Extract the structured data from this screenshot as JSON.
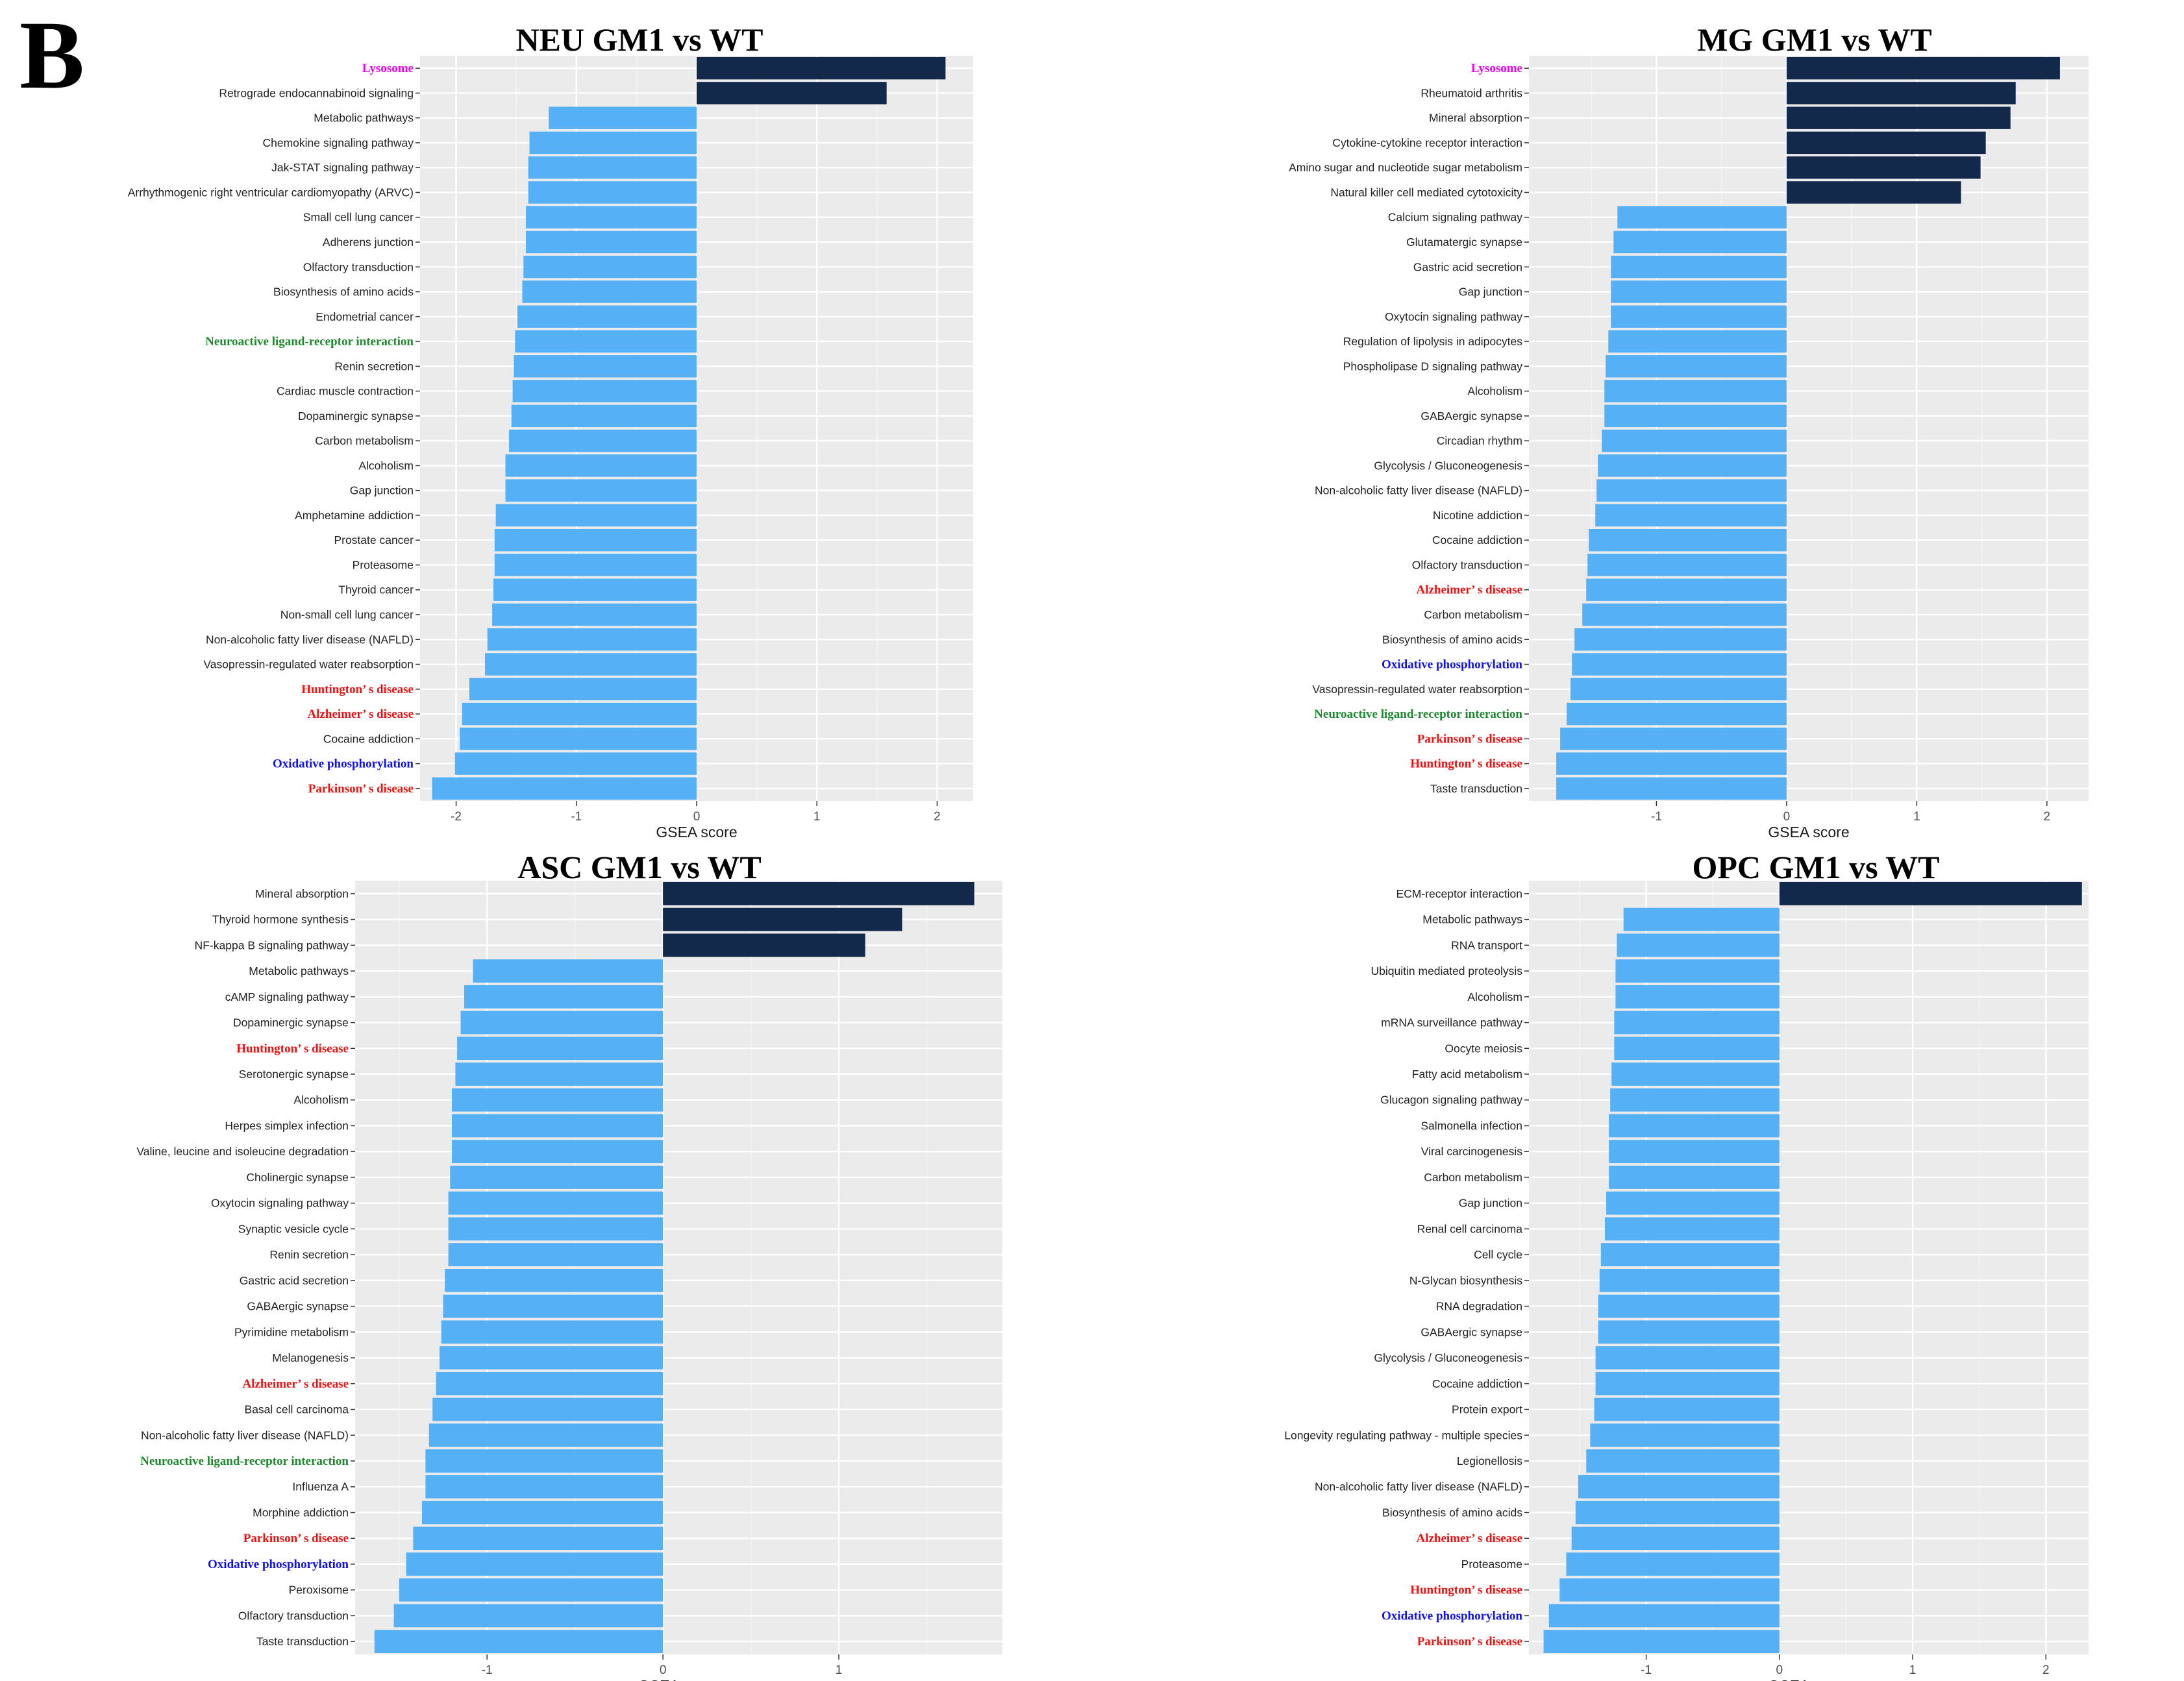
{
  "panel_label": "B",
  "colors": {
    "positive": "#13294b",
    "negative": "#56b0f5",
    "panel_bg": "#ebebeb",
    "grid": "#ffffff",
    "highlight": {
      "magenta": "#ee00ee",
      "green": "#1e8a2e",
      "red": "#ee1111",
      "blue": "#1111ee"
    }
  },
  "chart_data": [
    {
      "type": "bar",
      "orientation": "horizontal",
      "title": "NEU  GM1 vs WT",
      "xlabel": "GSEA score",
      "xlim": [
        -2.3,
        2.3
      ],
      "xticks": [
        -2,
        -1,
        0,
        1,
        2
      ],
      "categories": [
        "Lysosome",
        "Retrograde endocannabinoid signaling",
        "Metabolic pathways",
        "Chemokine signaling pathway",
        "Jak-STAT signaling pathway",
        "Arrhythmogenic right ventricular cardiomyopathy (ARVC)",
        "Small cell lung cancer",
        "Adherens junction",
        "Olfactory transduction",
        "Biosynthesis of amino acids",
        "Endometrial cancer",
        "Neuroactive ligand-receptor interaction",
        "Renin secretion",
        "Cardiac muscle contraction",
        "Dopaminergic synapse",
        "Carbon metabolism",
        "Alcoholism",
        "Gap junction",
        "Amphetamine addiction",
        "Prostate cancer",
        "Proteasome",
        "Thyroid cancer",
        "Non-small cell lung cancer",
        "Non-alcoholic fatty liver disease (NAFLD)",
        "Vasopressin-regulated water reabsorption",
        "Huntington’ s disease",
        "Alzheimer’ s disease",
        "Cocaine addiction",
        "Oxidative phosphorylation",
        "Parkinson’ s disease"
      ],
      "values": [
        2.07,
        1.58,
        -1.23,
        -1.39,
        -1.4,
        -1.4,
        -1.42,
        -1.42,
        -1.44,
        -1.45,
        -1.49,
        -1.51,
        -1.52,
        -1.53,
        -1.54,
        -1.56,
        -1.59,
        -1.59,
        -1.67,
        -1.68,
        -1.68,
        -1.69,
        -1.7,
        -1.74,
        -1.76,
        -1.89,
        -1.95,
        -1.97,
        -2.01,
        -2.2
      ],
      "highlight": {
        "Lysosome": "magenta",
        "Neuroactive ligand-receptor interaction": "green",
        "Huntington’ s disease": "red",
        "Alzheimer’ s disease": "red",
        "Oxidative phosphorylation": "blue",
        "Parkinson’ s disease": "red"
      }
    },
    {
      "type": "bar",
      "orientation": "horizontal",
      "title": "MG  GM1 vs WT",
      "xlabel": "GSEA score",
      "xlim": [
        -1.98,
        2.32
      ],
      "xticks": [
        -1,
        0,
        1,
        2
      ],
      "categories": [
        "Lysosome",
        "Rheumatoid arthritis",
        "Mineral absorption",
        "Cytokine-cytokine receptor interaction",
        "Amino sugar and nucleotide sugar metabolism",
        "Natural killer cell mediated cytotoxicity",
        "Calcium signaling pathway",
        "Glutamatergic synapse",
        "Gastric acid secretion",
        "Gap junction",
        "Oxytocin signaling pathway",
        "Regulation of lipolysis in adipocytes",
        "Phospholipase D signaling pathway",
        "Alcoholism",
        "GABAergic synapse",
        "Circadian rhythm",
        "Glycolysis / Gluconeogenesis",
        "Non-alcoholic fatty liver disease (NAFLD)",
        "Nicotine addiction",
        "Cocaine addiction",
        "Olfactory transduction",
        "Alzheimer’ s disease",
        "Carbon metabolism",
        "Biosynthesis of amino acids",
        "Oxidative phosphorylation",
        "Vasopressin-regulated water reabsorption",
        "Neuroactive ligand-receptor interaction",
        "Parkinson’ s disease",
        "Huntington’ s disease",
        "Taste transduction"
      ],
      "values": [
        2.1,
        1.76,
        1.72,
        1.53,
        1.49,
        1.34,
        -1.3,
        -1.33,
        -1.35,
        -1.35,
        -1.35,
        -1.37,
        -1.39,
        -1.4,
        -1.4,
        -1.42,
        -1.45,
        -1.46,
        -1.47,
        -1.52,
        -1.53,
        -1.54,
        -1.57,
        -1.63,
        -1.65,
        -1.66,
        -1.69,
        -1.74,
        -1.77,
        -1.77
      ],
      "highlight": {
        "Lysosome": "magenta",
        "Alzheimer’ s disease": "red",
        "Oxidative phosphorylation": "blue",
        "Neuroactive ligand-receptor interaction": "green",
        "Parkinson’ s disease": "red",
        "Huntington’ s disease": "red"
      }
    },
    {
      "type": "bar",
      "orientation": "horizontal",
      "title": "ASC  GM1 vs WT",
      "xlabel": "GSEA score",
      "xlim": [
        -1.75,
        1.93
      ],
      "xticks": [
        -1,
        0,
        1
      ],
      "categories": [
        "Mineral absorption",
        "Thyroid hormone synthesis",
        "NF-kappa B signaling pathway",
        "Metabolic pathways",
        "cAMP signaling pathway",
        "Dopaminergic synapse",
        "Huntington’ s disease",
        "Serotonergic synapse",
        "Alcoholism",
        "Herpes simplex infection",
        "Valine, leucine and isoleucine degradation",
        "Cholinergic synapse",
        "Oxytocin signaling pathway",
        "Synaptic vesicle cycle",
        "Renin secretion",
        "Gastric acid secretion",
        "GABAergic synapse",
        "Pyrimidine metabolism",
        "Melanogenesis",
        "Alzheimer’ s disease",
        "Basal cell carcinoma",
        "Non-alcoholic fatty liver disease (NAFLD)",
        "Neuroactive ligand-receptor interaction",
        "Influenza A",
        "Morphine addiction",
        "Parkinson’ s disease",
        "Oxidative phosphorylation",
        "Peroxisome",
        "Olfactory transduction",
        "Taste transduction"
      ],
      "values": [
        1.77,
        1.36,
        1.15,
        -1.08,
        -1.13,
        -1.15,
        -1.17,
        -1.18,
        -1.2,
        -1.2,
        -1.2,
        -1.21,
        -1.22,
        -1.22,
        -1.22,
        -1.24,
        -1.25,
        -1.26,
        -1.27,
        -1.29,
        -1.31,
        -1.33,
        -1.35,
        -1.35,
        -1.37,
        -1.42,
        -1.46,
        -1.5,
        -1.53,
        -1.64
      ],
      "highlight": {
        "Huntington’ s disease": "red",
        "Alzheimer’ s disease": "red",
        "Neuroactive ligand-receptor interaction": "green",
        "Parkinson’ s disease": "red",
        "Oxidative phosphorylation": "blue"
      }
    },
    {
      "type": "bar",
      "orientation": "horizontal",
      "title": "OPC GM1 vs WT",
      "xlabel": "GSEA score",
      "xlim": [
        -1.88,
        2.32
      ],
      "xticks": [
        -1,
        0,
        1,
        2
      ],
      "categories": [
        "ECM-receptor interaction",
        "Metabolic pathways",
        "RNA transport",
        "Ubiquitin mediated proteolysis",
        "Alcoholism",
        "mRNA surveillance pathway",
        "Oocyte meiosis",
        "Fatty acid metabolism",
        "Glucagon signaling pathway",
        "Salmonella infection",
        "Viral carcinogenesis",
        "Carbon metabolism",
        "Gap junction",
        "Renal cell carcinoma",
        "Cell cycle",
        "N-Glycan biosynthesis",
        "RNA degradation",
        "GABAergic synapse",
        "Glycolysis / Gluconeogenesis",
        "Cocaine addiction",
        "Protein export",
        "Longevity regulating pathway - multiple species",
        "Legionellosis",
        "Non-alcoholic fatty liver disease (NAFLD)",
        "Biosynthesis of amino acids",
        "Alzheimer’ s disease",
        "Proteasome",
        "Huntington’ s disease",
        "Oxidative phosphorylation",
        "Parkinson’ s disease"
      ],
      "values": [
        2.27,
        -1.17,
        -1.22,
        -1.23,
        -1.23,
        -1.24,
        -1.24,
        -1.26,
        -1.27,
        -1.28,
        -1.28,
        -1.28,
        -1.3,
        -1.31,
        -1.34,
        -1.35,
        -1.36,
        -1.36,
        -1.38,
        -1.38,
        -1.39,
        -1.42,
        -1.45,
        -1.51,
        -1.53,
        -1.56,
        -1.6,
        -1.65,
        -1.73,
        -1.77
      ],
      "highlight": {
        "Alzheimer’ s disease": "red",
        "Huntington’ s disease": "red",
        "Oxidative phosphorylation": "blue",
        "Parkinson’ s disease": "red"
      }
    }
  ]
}
